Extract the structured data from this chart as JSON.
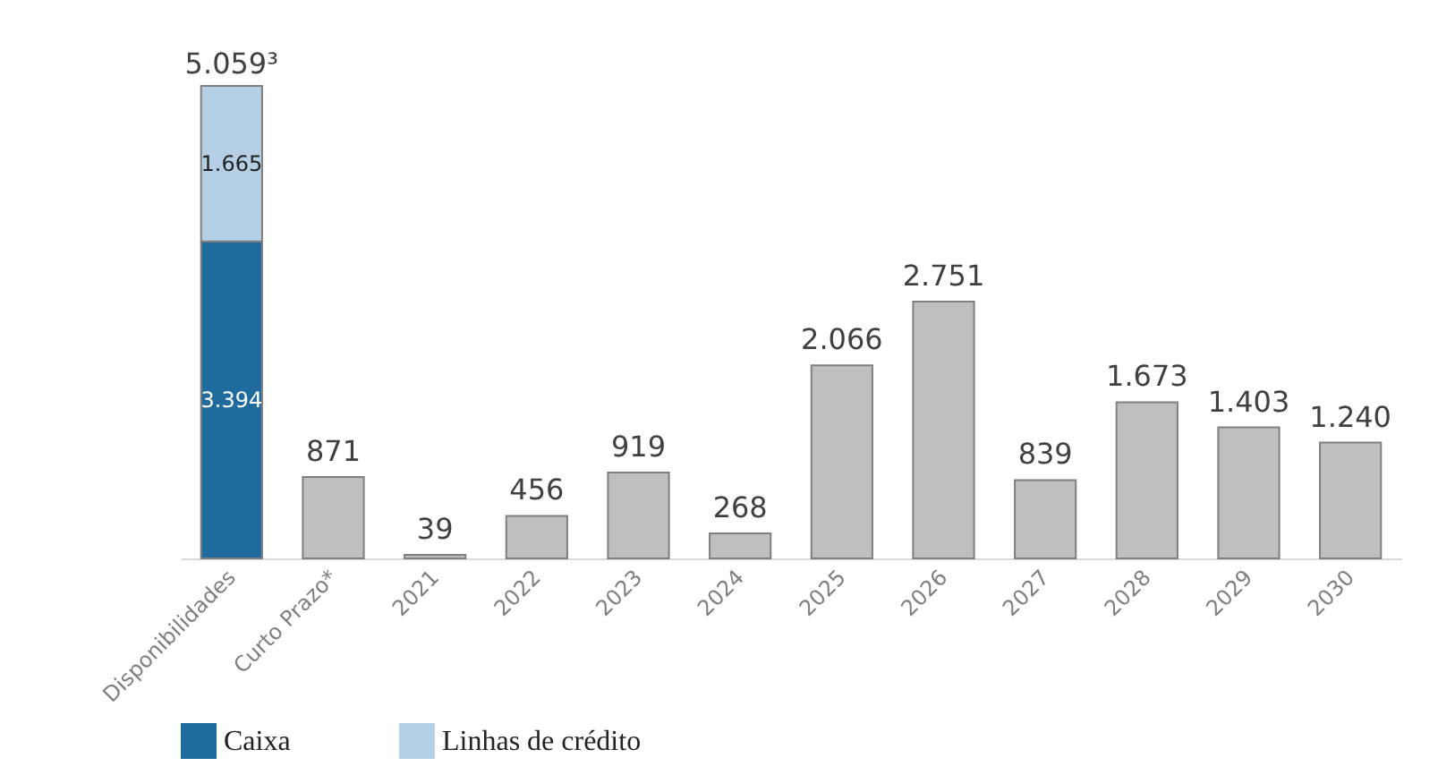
{
  "chart_data": {
    "type": "bar",
    "stacked": true,
    "tick_labels": "x",
    "legend": "bottom",
    "grid": false,
    "categories": [
      "Disponibilidades",
      "Curto Prazo*",
      "2021",
      "2022",
      "2023",
      "2024",
      "2025",
      "2026",
      "2027",
      "2028",
      "2029",
      "2030"
    ],
    "series": [
      {
        "name": "Caixa",
        "color": "#1f6b9d",
        "values": [
          3394,
          null,
          null,
          null,
          null,
          null,
          null,
          null,
          null,
          null,
          null,
          null
        ],
        "value_labels": [
          "3.394",
          null,
          null,
          null,
          null,
          null,
          null,
          null,
          null,
          null,
          null,
          null
        ]
      },
      {
        "name": "Linhas de crédito",
        "color": "#b5d0e6",
        "values": [
          1665,
          null,
          null,
          null,
          null,
          null,
          null,
          null,
          null,
          null,
          null,
          null
        ],
        "value_labels": [
          "1.665",
          null,
          null,
          null,
          null,
          null,
          null,
          null,
          null,
          null,
          null,
          null
        ]
      },
      {
        "color": "#bfbfbf",
        "values": [
          null,
          871,
          39,
          456,
          919,
          268,
          2066,
          2751,
          839,
          1673,
          1403,
          1240
        ],
        "value_labels": [
          null,
          "871",
          "39",
          "456",
          "919",
          "268",
          "2.066",
          "2.751",
          "839",
          "1.673",
          "1.403",
          "1.240"
        ]
      }
    ],
    "totals": [
      "5.059³",
      null,
      null,
      null,
      null,
      null,
      null,
      null,
      null,
      null,
      null,
      null
    ]
  }
}
